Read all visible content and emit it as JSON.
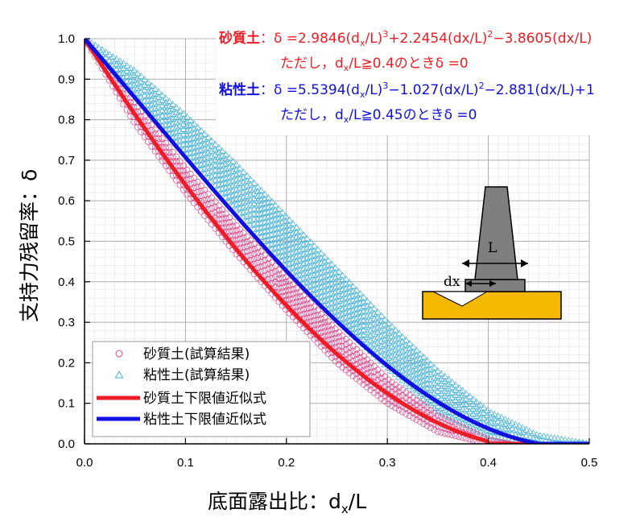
{
  "chart_data": {
    "type": "scatter",
    "xlabel_main": "底面露出比：d",
    "xlabel_sub": "x",
    "xlabel_tail": "/L",
    "ylabel": "支持力残留率：δ",
    "xlim": [
      0,
      0.5
    ],
    "ylim": [
      0,
      1.0
    ],
    "x_ticks": [
      "0.0",
      "0.1",
      "0.2",
      "0.3",
      "0.4",
      "0.5"
    ],
    "y_ticks": [
      "0.0",
      "0.1",
      "0.2",
      "0.3",
      "0.4",
      "0.5",
      "0.6",
      "0.7",
      "0.8",
      "0.9",
      "1.0"
    ],
    "grid": true,
    "legend_position": "bottom-left",
    "series": [
      {
        "name": "砂質土(試算結果)",
        "marker": "circle",
        "color": "#e0448c",
        "band": {
          "x": [
            0,
            0.05,
            0.1,
            0.15,
            0.2,
            0.25,
            0.3,
            0.35,
            0.4,
            0.42
          ],
          "lower": [
            1.0,
            0.79,
            0.62,
            0.47,
            0.33,
            0.2,
            0.1,
            0.03,
            0.0,
            0.0
          ],
          "upper": [
            1.0,
            0.84,
            0.68,
            0.54,
            0.41,
            0.28,
            0.16,
            0.07,
            0.01,
            0.0
          ]
        }
      },
      {
        "name": "粘性土(試算結果)",
        "marker": "triangle",
        "color": "#3fb0d8",
        "band": {
          "x": [
            0,
            0.05,
            0.1,
            0.15,
            0.2,
            0.25,
            0.3,
            0.35,
            0.4,
            0.45,
            0.5
          ],
          "lower": [
            1.0,
            0.86,
            0.72,
            0.58,
            0.44,
            0.31,
            0.19,
            0.08,
            0.02,
            0.0,
            0.0
          ],
          "upper": [
            1.0,
            0.92,
            0.81,
            0.69,
            0.56,
            0.43,
            0.3,
            0.18,
            0.08,
            0.02,
            0.0
          ]
        }
      },
      {
        "name": "砂質土下限値近似式",
        "type": "line",
        "color": "#ee1c24",
        "formula": "sandy"
      },
      {
        "name": "粘性土下限値近似式",
        "type": "line",
        "color": "#1010e0",
        "formula": "clay"
      }
    ],
    "annotations": {
      "sandy_label": "砂質土",
      "sandy_eq": "：δ =2.9846(d",
      "sandy_eq_sub": "x",
      "sandy_eq_b": "/L)",
      "sandy_eq_sup": "3",
      "sandy_eq_c": "+2.2454(dx/L)",
      "sandy_eq_sup2": "2",
      "sandy_eq_d": "−3.8605(dx/L)",
      "sandy_cond_a": "ただし，d",
      "sandy_cond_sub": "x",
      "sandy_cond_b": "/L≧0.4のときδ =0",
      "clay_label": "粘性土",
      "clay_eq": "：δ =5.5394(d",
      "clay_eq_sub": "x",
      "clay_eq_b": "/L)",
      "clay_eq_sup": "3",
      "clay_eq_c": "−1.027(dx/L)",
      "clay_eq_sup2": "2",
      "clay_eq_d": "−2.881(dx/L)+1",
      "clay_cond_a": "ただし，d",
      "clay_cond_sub": "x",
      "clay_cond_b": "/L≧0.45のときδ =0"
    },
    "diagram": {
      "label_L": "L",
      "label_dx": "dx"
    }
  }
}
